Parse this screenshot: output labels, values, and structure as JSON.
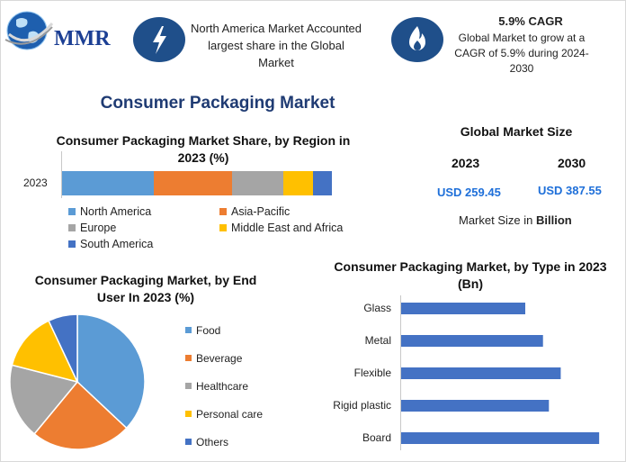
{
  "header": {
    "logo_text": "MMR",
    "highlight_text": "North America Market Accounted largest share in the Global Market",
    "cagr_title": "5.9% CAGR",
    "cagr_text": "Global Market to grow at a CAGR of 5.9% during 2024-2030",
    "icons": [
      "globe-icon",
      "lightning-icon",
      "flame-icon"
    ]
  },
  "main_title": "Consumer Packaging Market",
  "market_size": {
    "title": "Global Market Size",
    "year_a": "2023",
    "year_b": "2030",
    "value_a": "USD 259.45",
    "value_b": "USD 387.55",
    "unit_prefix": "Market Size in",
    "unit_bold": "Billion"
  },
  "colors": {
    "blue": "#5b9bd5",
    "orange": "#ed7d31",
    "gray": "#a5a5a5",
    "yellow": "#ffc000",
    "dark_blue": "#4472c4",
    "bar_blue": "#4472c4",
    "icon_bg": "#1f4f8a",
    "title_blue": "#1f3b73"
  },
  "chart_data": [
    {
      "type": "bar",
      "orientation": "horizontal-stacked",
      "title": "Consumer Packaging Market Share, by Region in 2023 (%)",
      "categories": [
        "2023"
      ],
      "series": [
        {
          "name": "North America",
          "values": [
            34
          ],
          "color": "#5b9bd5"
        },
        {
          "name": "Asia-Pacific",
          "values": [
            29
          ],
          "color": "#ed7d31"
        },
        {
          "name": "Europe",
          "values": [
            19
          ],
          "color": "#a5a5a5"
        },
        {
          "name": "Middle East and Africa",
          "values": [
            11
          ],
          "color": "#ffc000"
        },
        {
          "name": "South America",
          "values": [
            7
          ],
          "color": "#4472c4"
        }
      ],
      "legend": "bottom"
    },
    {
      "type": "pie",
      "title": "Consumer Packaging Market, by End User In 2023 (%)",
      "labels": [
        "Food",
        "Beverage",
        "Healthcare",
        "Personal care",
        "Others"
      ],
      "values": [
        37,
        24,
        18,
        14,
        7
      ],
      "colors": [
        "#5b9bd5",
        "#ed7d31",
        "#a5a5a5",
        "#ffc000",
        "#4472c4"
      ],
      "legend": "right"
    },
    {
      "type": "bar",
      "orientation": "horizontal",
      "title": "Consumer Packaging Market, by Type in 2023 (Bn)",
      "categories": [
        "Glass",
        "Metal",
        "Flexible",
        "Rigid plastic",
        "Board"
      ],
      "values": [
        42,
        48,
        54,
        50,
        67
      ],
      "color": "#4472c4",
      "xlim": [
        0,
        70
      ],
      "grid": false
    }
  ]
}
